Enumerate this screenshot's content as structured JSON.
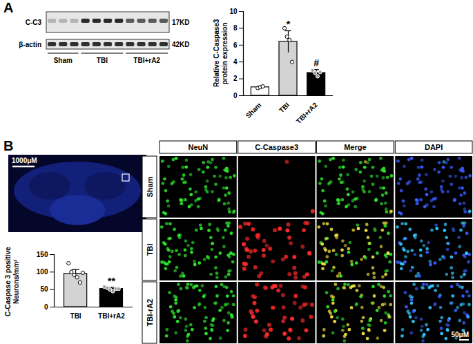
{
  "panel_labels": [
    "A",
    "B"
  ],
  "blot": {
    "rows": [
      {
        "label": "C-C3",
        "size": "17KD"
      },
      {
        "label": "β-actin",
        "size": "42KD"
      }
    ],
    "groups": [
      {
        "label": "Sham",
        "lanes": 3
      },
      {
        "label": "TBI",
        "lanes": 4
      },
      {
        "label": "TBI+rA2",
        "lanes": 4
      }
    ]
  },
  "overview": {
    "scale_bar": "1000μM"
  },
  "micrographs": {
    "columns": [
      "NeuN",
      "C-Caspase3",
      "Merge",
      "DAPI"
    ],
    "rows": [
      "Sham",
      "TBI",
      "TBI-rA2"
    ],
    "scale_bar": "50μM"
  },
  "chart_data": [
    {
      "type": "bar",
      "y_label": [
        "Relative C-Caspase3",
        "protein expression"
      ],
      "categories": [
        "Sham",
        "TBI",
        "TBI+rA2"
      ],
      "values": [
        1.0,
        6.4,
        2.7
      ],
      "errors": [
        0.1,
        1.3,
        0.4
      ],
      "points": [
        [
          0.9,
          1.0,
          1.1
        ],
        [
          8.0,
          7.0,
          6.6,
          4.0
        ],
        [
          3.0,
          2.7,
          2.3,
          2.8
        ]
      ],
      "colors": [
        "#ffffff",
        "#d3d3d3",
        "#000000"
      ],
      "ylim": [
        0,
        10
      ],
      "yticks": [
        0,
        2,
        4,
        6,
        8,
        10
      ],
      "annotations": [
        {
          "category": "TBI",
          "text": "*"
        },
        {
          "category": "TBI+rA2",
          "text": "#"
        }
      ]
    },
    {
      "type": "bar",
      "y_label": [
        "C-Caspase 3 positive",
        "Neurons/mm²"
      ],
      "categories": [
        "TBI",
        "TBI+rA2"
      ],
      "values": [
        95,
        52
      ],
      "errors": [
        12,
        4
      ],
      "points": [
        [
          125,
          100,
          92,
          85,
          70,
          98
        ],
        [
          58,
          55,
          50,
          45,
          52,
          52
        ]
      ],
      "colors": [
        "#d3d3d3",
        "#000000"
      ],
      "ylim": [
        0,
        150
      ],
      "yticks": [
        0,
        50,
        100,
        150
      ],
      "annotations": [
        {
          "category": "TBI+rA2",
          "text": "**"
        }
      ]
    }
  ]
}
